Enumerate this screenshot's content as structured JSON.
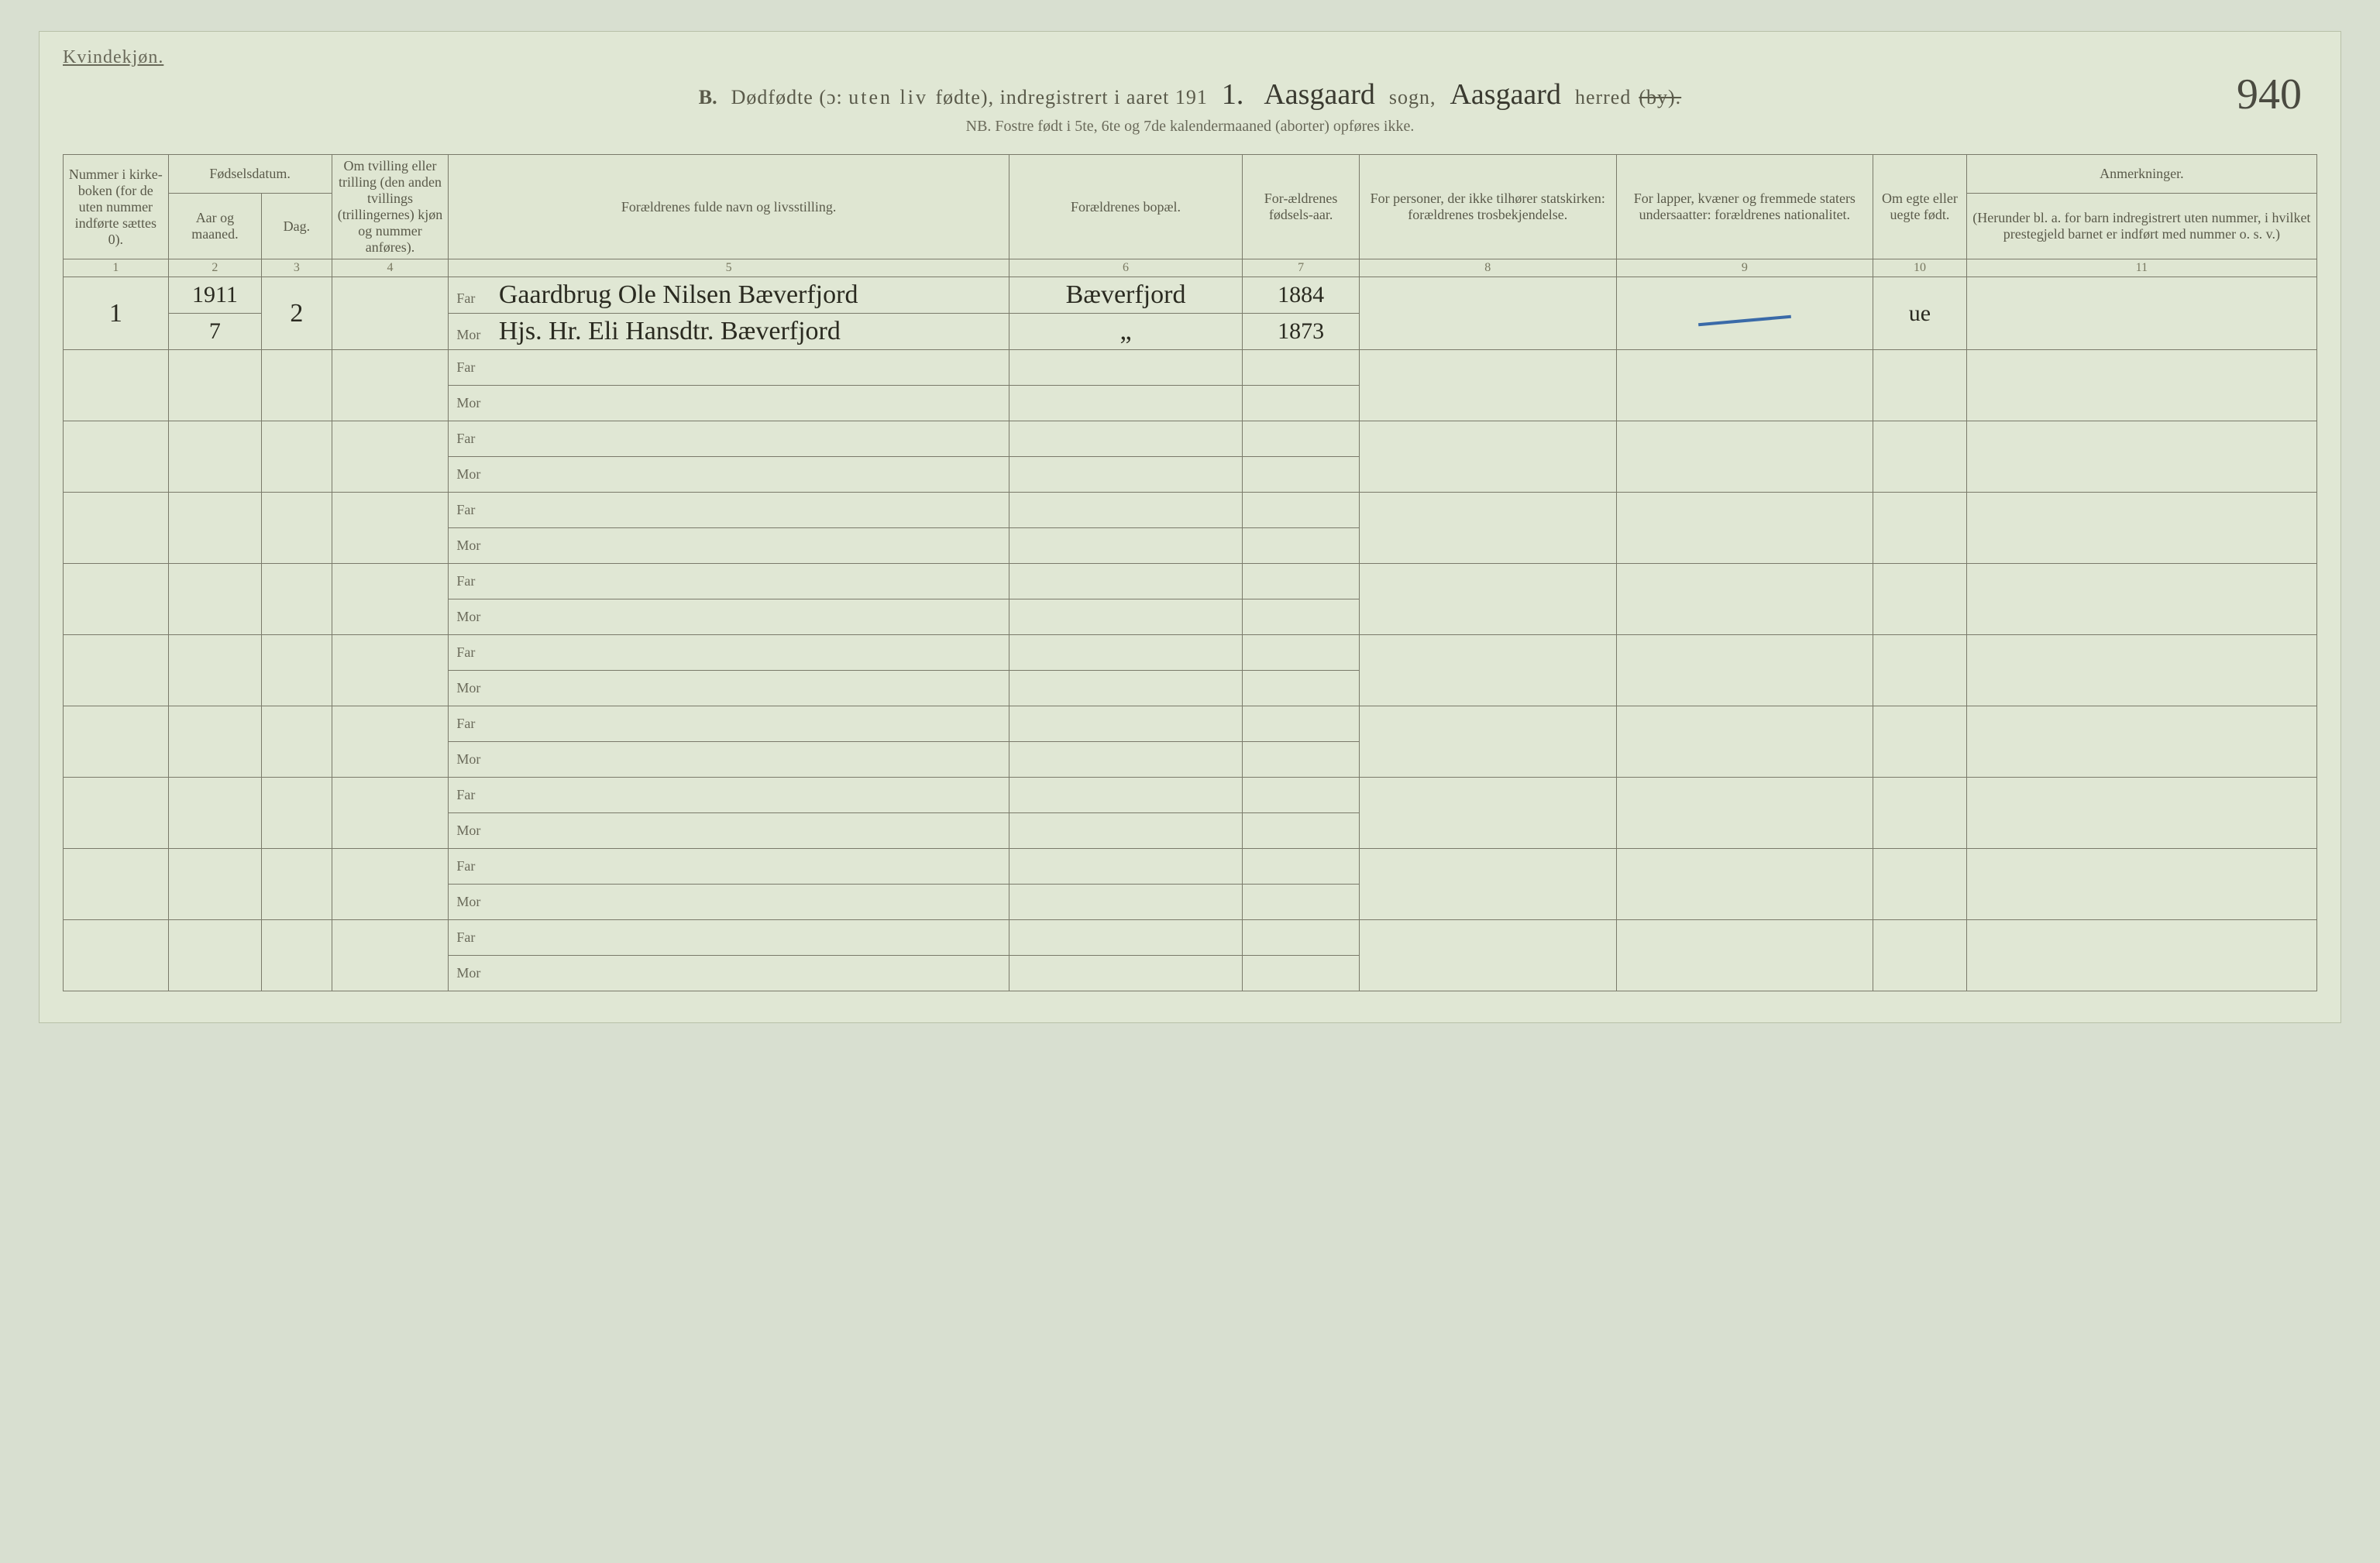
{
  "page": {
    "gender_label": "Kvindekjøn.",
    "title_prefix": "B.",
    "title_text_a": "Dødfødte (ɔ:",
    "title_text_spaced": "uten liv ",
    "title_text_b": "fødte), indregistrert i aaret 191",
    "year_suffix_hw": "1.",
    "sogn_hw": "Aasgaard",
    "sogn_label": "sogn,",
    "herred_hw": "Aasgaard",
    "herred_label_a": "herred",
    "herred_struck": "(by).",
    "page_number_hw": "940",
    "subtitle": "NB. Fostre født i 5te, 6te og 7de kalendermaaned (aborter) opføres ikke."
  },
  "headers": {
    "c1": "Nummer i kirke-boken (for de uten nummer indførte sættes 0).",
    "c2_top": "Fødselsdatum.",
    "c2a": "Aar og maaned.",
    "c2b": "Dag.",
    "c4": "Om tvilling eller trilling (den anden tvillings (trillingernes) kjøn og nummer anføres).",
    "c5": "Forældrenes fulde navn og livsstilling.",
    "c6": "Forældrenes bopæl.",
    "c7": "For-ældrenes fødsels-aar.",
    "c8": "For personer, der ikke tilhører statskirken: forældrenes trosbekjendelse.",
    "c9": "For lapper, kvæner og fremmede staters undersaatter: forældrenes nationalitet.",
    "c10": "Om egte eller uegte født.",
    "c11_top": "Anmerkninger.",
    "c11_sub": "(Herunder bl. a. for barn indregistrert uten nummer, i hvilket prestegjeld barnet er indført med nummer o. s. v.)"
  },
  "colnums": [
    "1",
    "2",
    "3",
    "4",
    "5",
    "6",
    "7",
    "8",
    "9",
    "10",
    "11"
  ],
  "labels": {
    "far": "Far",
    "mor": "Mor"
  },
  "entry": {
    "num": "1",
    "year": "1911",
    "month": "7",
    "day": "2",
    "far_name": "Gaardbrug Ole Nilsen Bæverfjord",
    "mor_name": "Hjs. Hr. Eli Hansdtr. Bæverfjord",
    "bopel_far": "Bæverfjord",
    "bopel_mor": "„",
    "far_year": "1884",
    "mor_year": "1873",
    "egte": "ue"
  },
  "colors": {
    "page_bg": "#e0e7d4",
    "border": "#7a7a6a",
    "text": "#5a5a4a",
    "hw": "#2a2a20",
    "blue": "#3a6aa8"
  }
}
